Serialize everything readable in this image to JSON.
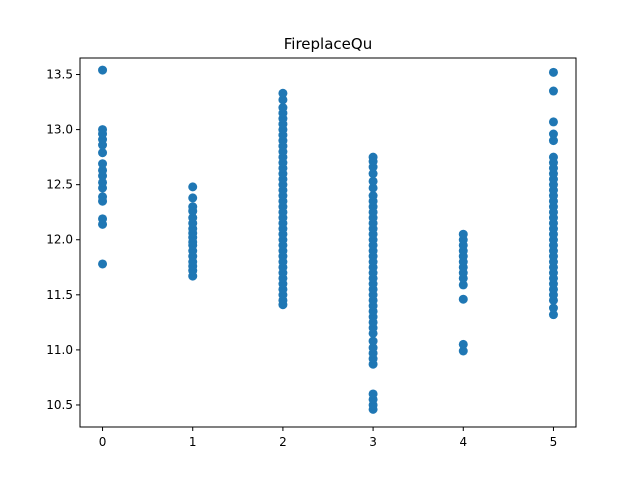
{
  "chart_data": {
    "type": "scatter",
    "title": "FireplaceQu",
    "xlabel": "",
    "ylabel": "",
    "xlim": [
      -0.25,
      5.25
    ],
    "ylim": [
      10.3,
      13.65
    ],
    "xticks": [
      0,
      1,
      2,
      3,
      4,
      5
    ],
    "yticks": [
      10.5,
      11.0,
      11.5,
      12.0,
      12.5,
      13.0,
      13.5
    ],
    "ytick_labels": [
      "10.5",
      "11.0",
      "11.5",
      "12.0",
      "12.5",
      "13.0",
      "13.5"
    ],
    "grid": false,
    "legend": "none",
    "marker_color": "#1f77b4",
    "series": [
      {
        "values": [
          {
            "x": 0,
            "y": [
              11.78,
              12.14,
              12.19,
              12.35,
              12.39,
              12.47,
              12.52,
              12.58,
              12.63,
              12.69,
              12.79,
              12.86,
              12.91,
              12.96,
              13.0,
              13.54
            ]
          },
          {
            "x": 1,
            "y": [
              11.67,
              11.72,
              11.76,
              11.8,
              11.85,
              11.9,
              11.95,
              11.98,
              12.02,
              12.06,
              12.1,
              12.15,
              12.2,
              12.26,
              12.3,
              12.38,
              12.48
            ]
          },
          {
            "x": 2,
            "y": [
              11.41,
              11.45,
              11.5,
              11.55,
              11.6,
              11.65,
              11.7,
              11.75,
              11.8,
              11.85,
              11.9,
              11.95,
              12.0,
              12.05,
              12.1,
              12.15,
              12.2,
              12.25,
              12.3,
              12.35,
              12.4,
              12.45,
              12.5,
              12.55,
              12.6,
              12.65,
              12.7,
              12.75,
              12.8,
              12.85,
              12.9,
              12.95,
              13.0,
              13.05,
              13.1,
              13.15,
              13.2,
              13.27,
              13.33
            ]
          },
          {
            "x": 3,
            "y": [
              10.46,
              10.5,
              10.55,
              10.6,
              10.87,
              10.92,
              10.97,
              11.02,
              11.08,
              11.15,
              11.2,
              11.25,
              11.3,
              11.35,
              11.4,
              11.45,
              11.5,
              11.55,
              11.6,
              11.65,
              11.7,
              11.75,
              11.8,
              11.85,
              11.9,
              11.95,
              12.0,
              12.05,
              12.1,
              12.15,
              12.2,
              12.25,
              12.3,
              12.35,
              12.4,
              12.47,
              12.53,
              12.6,
              12.66,
              12.71,
              12.75
            ]
          },
          {
            "x": 4,
            "y": [
              10.99,
              11.05,
              11.46,
              11.59,
              11.65,
              11.7,
              11.75,
              11.8,
              11.85,
              11.9,
              11.95,
              12.0,
              12.05
            ]
          },
          {
            "x": 5,
            "y": [
              11.32,
              11.38,
              11.45,
              11.5,
              11.55,
              11.6,
              11.65,
              11.7,
              11.75,
              11.8,
              11.85,
              11.9,
              11.95,
              12.0,
              12.05,
              12.1,
              12.15,
              12.2,
              12.25,
              12.3,
              12.35,
              12.4,
              12.45,
              12.5,
              12.55,
              12.6,
              12.65,
              12.7,
              12.75,
              12.9,
              12.96,
              13.07,
              13.35,
              13.52
            ]
          }
        ]
      }
    ]
  }
}
